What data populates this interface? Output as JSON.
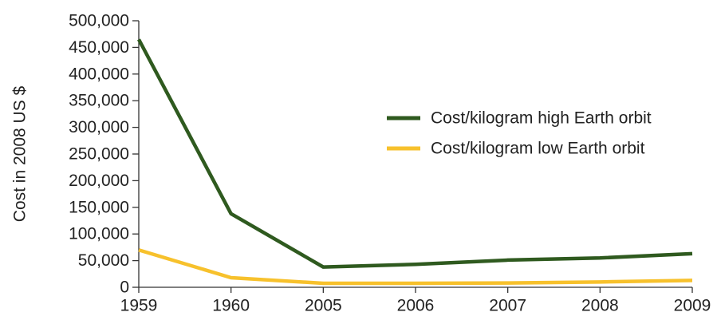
{
  "chart_data": {
    "type": "line",
    "y_label": "Cost in 2008 US $",
    "categories": [
      "1959",
      "1960",
      "2005",
      "2006",
      "2007",
      "2008",
      "2009"
    ],
    "series": [
      {
        "name": "Cost/kilogram high Earth orbit",
        "color": "#2f5a1f",
        "values": [
          465000,
          138000,
          38000,
          43000,
          51000,
          55000,
          63000
        ]
      },
      {
        "name": "Cost/kilogram low Earth orbit",
        "color": "#f7c12c",
        "values": [
          70000,
          18000,
          7500,
          7500,
          8000,
          10000,
          13000
        ]
      }
    ],
    "ylim": [
      0,
      500000
    ],
    "yticks": [
      0,
      {
        "value": 50000,
        "label": "50,000"
      },
      {
        "value": 100000,
        "label": "100,000"
      },
      {
        "value": 150000,
        "label": "150,000"
      },
      {
        "value": 200000,
        "label": "200,000"
      },
      {
        "value": 250000,
        "label": "250,000"
      },
      {
        "value": 300000,
        "label": "300,000"
      },
      {
        "value": 350000,
        "label": "350,000"
      },
      {
        "value": 400000,
        "label": "400,000"
      },
      {
        "value": 450000,
        "label": "450,000"
      },
      {
        "value": 500000,
        "label": "500,000"
      }
    ],
    "legend": "right"
  }
}
